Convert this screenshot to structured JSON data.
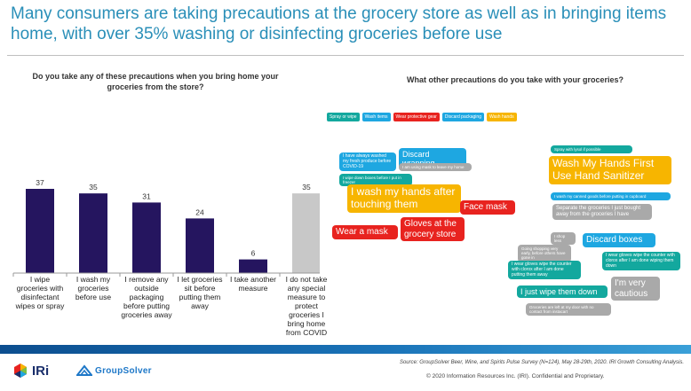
{
  "headline": "Many consumers are taking precautions at the grocery store as well as in bringing items home, with over 35% washing or disinfecting groceries before use",
  "left_question": "Do you take any of these precautions when you bring home your groceries from the store?",
  "right_question": "What other precautions do you take with your groceries?",
  "chart_data": {
    "type": "bar",
    "title": "Do you take any of these precautions when you bring home your groceries from the store?",
    "categories": [
      "I wipe groceries with disinfectant wipes or spray",
      "I wash my groceries before use",
      "I remove any outside packaging before putting groceries away",
      "I let groceries sit before putting them away",
      "I take another measure",
      "I do not take any special measure to protect groceries I bring home from COVID"
    ],
    "values": [
      37,
      35,
      31,
      24,
      6,
      35
    ],
    "bar_colors": [
      "#25155f",
      "#25155f",
      "#25155f",
      "#25155f",
      "#25155f",
      "#c8c8c8"
    ],
    "ylim": [
      0,
      40
    ],
    "grid": false
  },
  "cat_lines": [
    [
      "I wipe",
      "groceries with",
      "disinfectant",
      "wipes or spray"
    ],
    [
      "I wash my",
      "groceries",
      "before use"
    ],
    [
      "I remove any",
      "outside",
      "packaging",
      "before putting",
      "groceries away"
    ],
    [
      "I let groceries",
      "sit before",
      "putting them",
      "away"
    ],
    [
      "I take another",
      "measure"
    ],
    [
      "I do not take",
      "any special",
      "measure to",
      "protect",
      "groceries I",
      "bring home",
      "from COVID"
    ]
  ],
  "legend": [
    {
      "label": "Spray or wipe",
      "color": "#13a89e"
    },
    {
      "label": "Wash items",
      "color": "#1ea7e1"
    },
    {
      "label": "Wear protective gear",
      "color": "#e8231f"
    },
    {
      "label": "Discard packaging",
      "color": "#1ea7e1"
    },
    {
      "label": "Wash hands",
      "color": "#f7b500"
    }
  ],
  "bubbles_left": [
    {
      "text": "I have always washed my fresh produce before COVID-19",
      "color": "#1ea7e1"
    },
    {
      "text": "Discard wrapping",
      "color": "#1ea7e1"
    },
    {
      "text": "I am using mask to leave my home",
      "color": "#a9a9a9"
    },
    {
      "text": "I wipe down boxes before I put in freezer",
      "color": "#13a89e"
    },
    {
      "text": "I wash my hands after touching them",
      "color": "#f7b500"
    },
    {
      "text": "Face mask",
      "color": "#e8231f"
    },
    {
      "text": "Wear a mask",
      "color": "#e8231f"
    },
    {
      "text": "Gloves at the grocery store",
      "color": "#e8231f"
    }
  ],
  "bubbles_right": [
    {
      "text": "Spray with lysol if possible",
      "color": "#13a89e"
    },
    {
      "text": "Wash My Hands First Use Hand Sanitizer",
      "color": "#f7b500"
    },
    {
      "text": "I wash my canned goods before putting in cupboard",
      "color": "#1ea7e1"
    },
    {
      "text": "Separate the groceries I just bought away from the groceries I have",
      "color": "#a9a9a9"
    },
    {
      "text": "I shop less",
      "color": "#a9a9a9"
    },
    {
      "text": "Discard boxes",
      "color": "#1ea7e1"
    },
    {
      "text": "Going shopping very early, before others have gone in",
      "color": "#a9a9a9"
    },
    {
      "text": "I wear gloves wipe the counter with clorox after I am done wiping them down",
      "color": "#13a89e"
    },
    {
      "text": "I wear gloves wipe the counter with clorox after I am done putting them away",
      "color": "#13a89e"
    },
    {
      "text": "I just wipe them down",
      "color": "#13a89e"
    },
    {
      "text": "I'm very cautious",
      "color": "#a9a9a9"
    },
    {
      "text": "Groceries are left at my door with no contact from instacart",
      "color": "#a9a9a9"
    }
  ],
  "footer": {
    "source": "Source: GroupSolver Beer, Wine, and Spirits Pulse Survey (N=124), May 28-29th, 2020. IRI Growth Consulting Analysis.",
    "copyright": "© 2020 Information Resources Inc. (IRI). Confidential and Proprietary.",
    "logo_iri": "IRi",
    "logo_gs": "GroupSolver"
  }
}
